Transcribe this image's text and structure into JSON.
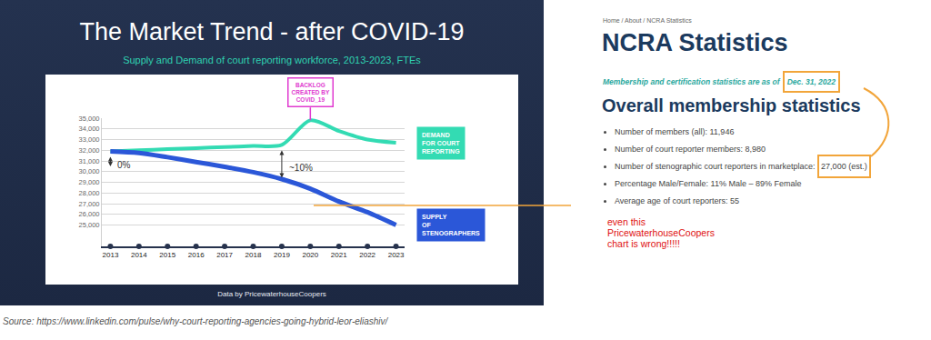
{
  "chart_data": {
    "type": "line",
    "title": "The Market Trend - after COVID-19",
    "subtitle": "Supply and Demand of court reporting workforce, 2013-2023, FTEs",
    "credit": "Data by PricewaterhouseCoopers",
    "x": [
      2013,
      2014,
      2015,
      2016,
      2017,
      2018,
      2019,
      2020,
      2021,
      2022,
      2023
    ],
    "series": [
      {
        "name": "DEMAND\nFOR COURT\nREPORTING",
        "color": "#33dbb3",
        "line_style": "solid",
        "values": [
          31900,
          32000,
          32100,
          32200,
          32300,
          32400,
          32500,
          34800,
          33800,
          33000,
          32700
        ]
      },
      {
        "name": "SUPPLY\nOF\nSTENOGRAPHERS",
        "color": "#2b57d8",
        "line_style": "solid",
        "values": [
          31900,
          31750,
          31350,
          30900,
          30450,
          29950,
          29300,
          28400,
          27200,
          26200,
          25000
        ]
      }
    ],
    "xlim": [
      2012.7,
      2023.3
    ],
    "xticks": [
      2013,
      2014,
      2015,
      2016,
      2017,
      2018,
      2019,
      2020,
      2021,
      2022,
      2023
    ],
    "ylim": [
      23000,
      35000
    ],
    "yticks": [
      {
        "value": 25000,
        "label": "25,000"
      },
      {
        "value": 26000,
        "label": "26,000"
      },
      {
        "value": 27000,
        "label": "27,000"
      },
      {
        "value": 28000,
        "label": "28,000"
      },
      {
        "value": 29000,
        "label": "29,000"
      },
      {
        "value": 30000,
        "label": "30,000"
      },
      {
        "value": 31000,
        "label": "31,000"
      },
      {
        "value": 32000,
        "label": "32,000"
      },
      {
        "value": 33000,
        "label": "33,000"
      },
      {
        "value": 34000,
        "label": "34,000"
      },
      {
        "value": 35000,
        "label": "35,000"
      }
    ],
    "grid": true,
    "gap_annotations": [
      {
        "text": "0%",
        "x": 2013
      },
      {
        "text": "~10%",
        "x": 2019
      }
    ],
    "callout_annotation": {
      "text": "BACKLOG\nCREATED BY\nCOVID_19",
      "x": 2020
    }
  },
  "source": "Source: https://www.linkedin.com/pulse/why-court-reporting-agencies-going-hybrid-leor-eliashiv/",
  "comment": {
    "lines": [
      "even this",
      "PricewaterhouseCoopers",
      "chart is wrong!!!!!"
    ]
  },
  "ncra_page": {
    "breadcrumb": "Home / About / NCRA Statistics",
    "title": "NCRA Statistics",
    "as_of": {
      "text": "Membership and certification statistics are as of",
      "date": "Dec. 31, 2022"
    },
    "section": "Overall membership statistics",
    "bullets": [
      {
        "label": "Number of members (all):",
        "value": "11,946"
      },
      {
        "label": "Number of court reporter members:",
        "value": "8,980"
      },
      {
        "label": "Number of stenographic court reporters in marketplace:",
        "value": "27,000 (est.)"
      },
      {
        "label": "Percentage Male/Female:",
        "value": "11% Male – 89% Female"
      },
      {
        "label": "Average age of court reporters:",
        "value": "55"
      }
    ]
  }
}
